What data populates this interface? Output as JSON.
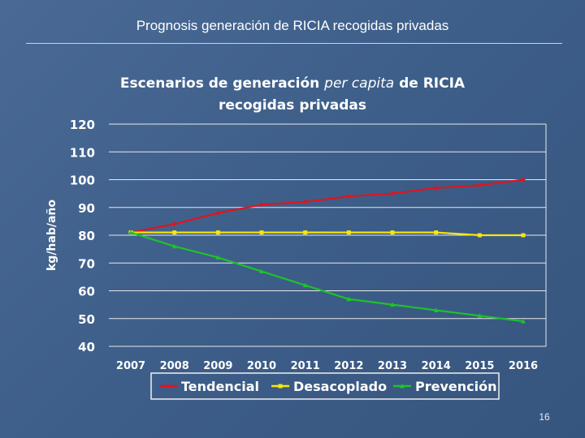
{
  "slide": {
    "title": "Prognosis generación de RICIA recogidas privadas",
    "page_number": "16"
  },
  "colors": {
    "Tendencial": "#e0141e",
    "Desacoplado": "#f5e80c",
    "Prevención": "#1ec22a",
    "gridline": "#e8e8e8",
    "legend_border": "#f0f0f0"
  },
  "chart_data": {
    "type": "line",
    "title_part1": "Escenarios de generación",
    "title_italic": "per capita",
    "title_part2": "de RICIA",
    "title_line2": "recogidas privadas",
    "ylabel": "kg/hab/año",
    "xlabel": "",
    "ylim": [
      40,
      120
    ],
    "yticks": [
      40,
      50,
      60,
      70,
      80,
      90,
      100,
      110,
      120
    ],
    "grid": true,
    "legend_position": "bottom",
    "categories": [
      "2007",
      "2008",
      "2009",
      "2010",
      "2011",
      "2012",
      "2013",
      "2014",
      "2015",
      "2016"
    ],
    "series": [
      {
        "name": "Tendencial",
        "values": [
          81,
          84,
          88,
          91,
          92,
          94,
          95,
          97,
          98,
          100
        ]
      },
      {
        "name": "Desacoplado",
        "values": [
          81,
          81,
          81,
          81,
          81,
          81,
          81,
          81,
          80,
          80
        ]
      },
      {
        "name": "Prevención",
        "values": [
          81,
          76,
          72,
          67,
          62,
          57,
          55,
          53,
          51,
          49
        ]
      }
    ]
  }
}
